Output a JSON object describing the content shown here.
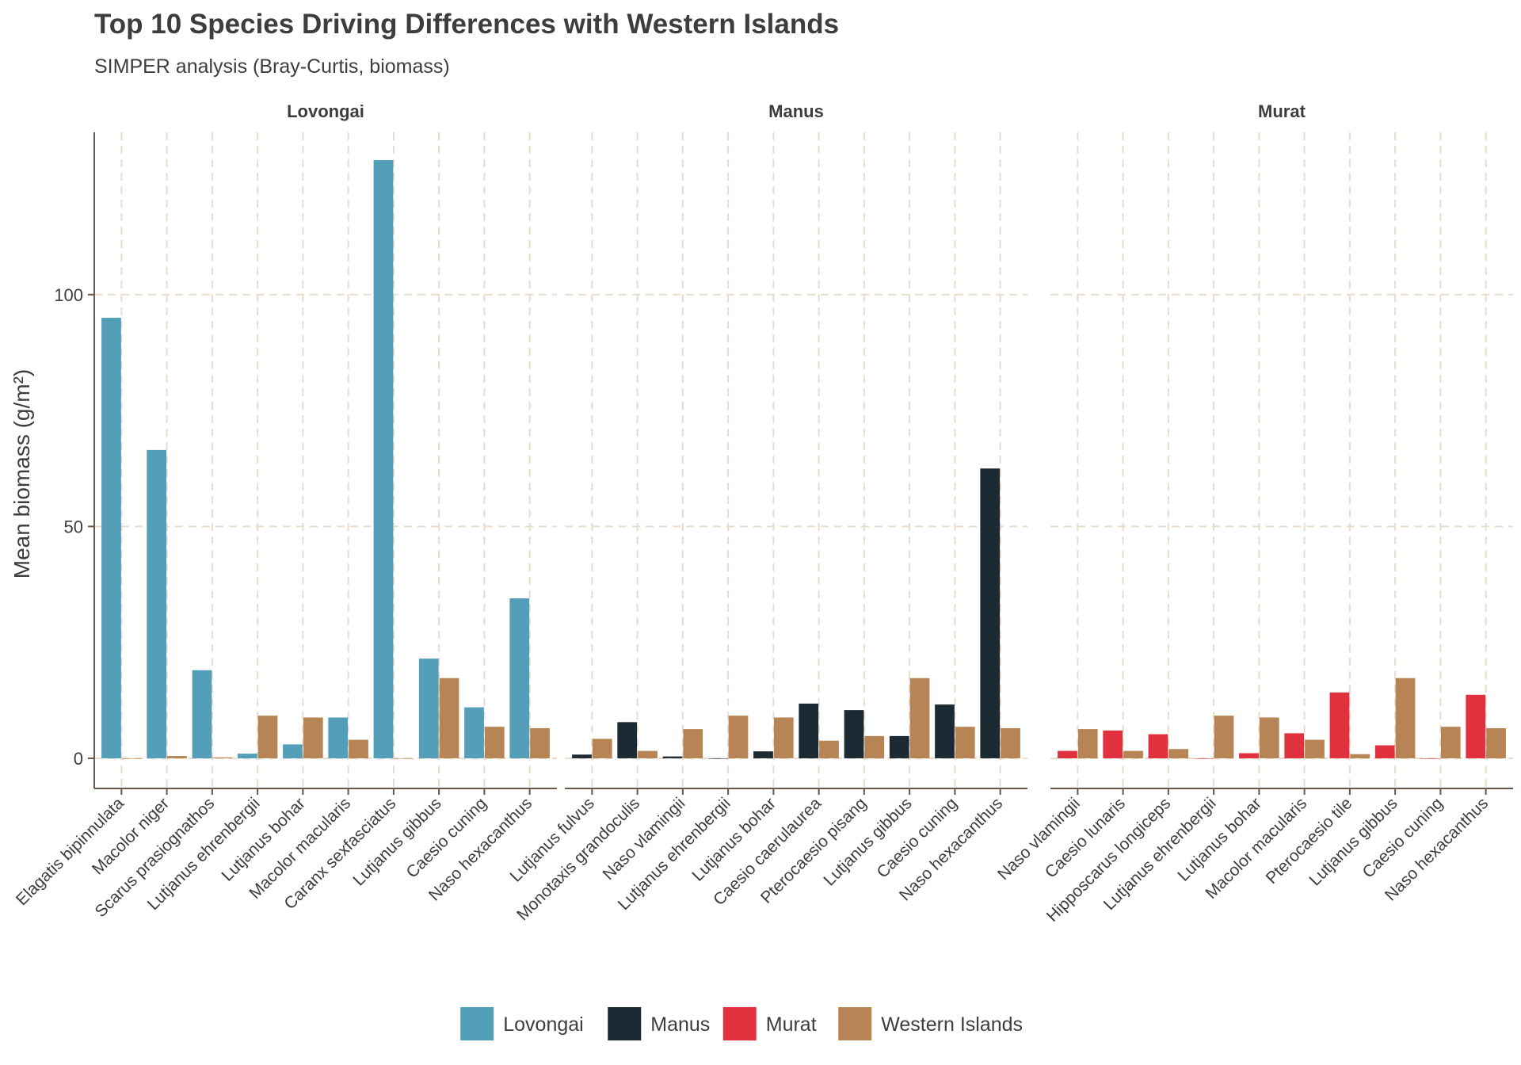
{
  "chart_data": {
    "type": "bar",
    "title": "Top 10 Species Driving Differences with Western Islands",
    "subtitle": "SIMPER analysis (Bray-Curtis, biomass)",
    "ylabel": "Mean biomass (g/m²)",
    "xlabel": "",
    "ylim": [
      -6.5,
      135
    ],
    "yticks": [
      0,
      50,
      100
    ],
    "grid": true,
    "legend_position": "bottom",
    "colors": {
      "Lovongai": "#539eb8",
      "Manus": "#1c2b33",
      "Murat": "#e1303e",
      "Western Islands": "#b78555"
    },
    "legend": [
      "Lovongai",
      "Manus",
      "Murat",
      "Western Islands"
    ],
    "panels": [
      {
        "name": "Lovongai",
        "categories": [
          "Elagatis bipinnulata",
          "Macolor niger",
          "Scarus prasiognathos",
          "Lutjanus ehrenbergii",
          "Lutjanus bohar",
          "Macolor macularis",
          "Caranx sexfasciatus",
          "Lutjanus gibbus",
          "Caesio cuning",
          "Naso hexacanthus"
        ],
        "series": [
          {
            "name": "Lovongai",
            "values": [
              95,
              66.5,
              19,
              1,
              3,
              8.8,
              129,
              21.5,
              11,
              34.5
            ]
          },
          {
            "name": "Western Islands",
            "values": [
              0,
              0.5,
              0.2,
              9.2,
              8.8,
              4,
              0,
              17.3,
              6.8,
              6.5
            ]
          }
        ]
      },
      {
        "name": "Manus",
        "categories": [
          "Lutjanus fulvus",
          "Monotaxis grandoculis",
          "Naso vlamingii",
          "Lutjanus ehrenbergii",
          "Lutjanus bohar",
          "Caesio caerulaurea",
          "Pterocaesio pisang",
          "Lutjanus gibbus",
          "Caesio cuning",
          "Naso hexacanthus"
        ],
        "series": [
          {
            "name": "Manus",
            "values": [
              0.8,
              7.8,
              0.4,
              0,
              1.5,
              11.8,
              10.4,
              4.8,
              11.6,
              62.5
            ]
          },
          {
            "name": "Western Islands",
            "values": [
              4.2,
              1.6,
              6.3,
              9.2,
              8.8,
              3.8,
              4.8,
              17.3,
              6.8,
              6.5
            ]
          }
        ]
      },
      {
        "name": "Murat",
        "categories": [
          "Naso vlamingii",
          "Caesio lunaris",
          "Hipposcarus longiceps",
          "Lutjanus ehrenbergii",
          "Lutjanus bohar",
          "Macolor macularis",
          "Pterocaesio tile",
          "Lutjanus gibbus",
          "Caesio cuning",
          "Naso hexacanthus"
        ],
        "series": [
          {
            "name": "Murat",
            "values": [
              1.6,
              6,
              5.2,
              0,
              1.1,
              5.4,
              14.2,
              2.8,
              0,
              13.7
            ]
          },
          {
            "name": "Western Islands",
            "values": [
              6.3,
              1.6,
              2,
              9.2,
              8.8,
              4,
              0.9,
              17.3,
              6.8,
              6.5
            ]
          }
        ]
      }
    ]
  }
}
